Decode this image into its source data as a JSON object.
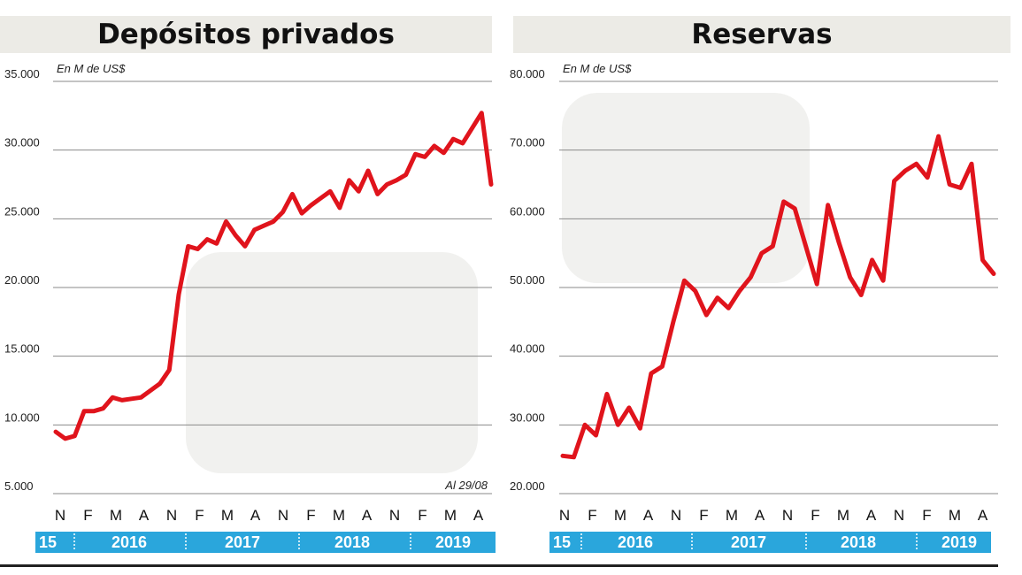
{
  "chart_data": [
    {
      "type": "line",
      "title": "Depósitos privados",
      "subtitle": "En M de US$",
      "annotation": "Al 29/08",
      "ylim": [
        5000,
        35000
      ],
      "yticks": [
        5000,
        10000,
        15000,
        20000,
        25000,
        30000,
        35000
      ],
      "ytick_labels": [
        "5.000",
        "10.000",
        "15.000",
        "20.000",
        "25.000",
        "30.000",
        "35.000"
      ],
      "month_labels": [
        "N",
        "F",
        "M",
        "A",
        "N",
        "F",
        "M",
        "A",
        "N",
        "F",
        "M",
        "A",
        "N",
        "F",
        "M",
        "A"
      ],
      "year_labels": [
        "15",
        "2016",
        "2017",
        "2018",
        "2019"
      ],
      "grid": true,
      "line_color": "#e0141c",
      "series": [
        {
          "values": [
            9500,
            9000,
            9200,
            11000,
            11000,
            11200,
            12000,
            11800,
            11900,
            12000,
            12500,
            13000,
            14000,
            19500,
            23000,
            22800,
            23500,
            23200,
            24800,
            23800,
            23000,
            24200,
            24500,
            24800,
            25500,
            26800,
            25400,
            26000,
            26500,
            27000,
            25800,
            27800,
            27000,
            28500,
            26800,
            27500,
            27800,
            28200,
            29700,
            29500,
            30300,
            29800,
            30800,
            30500,
            31600,
            32700,
            27500
          ]
        }
      ]
    },
    {
      "type": "line",
      "title": "Reservas",
      "subtitle": "En M de US$",
      "ylim": [
        20000,
        80000
      ],
      "yticks": [
        20000,
        30000,
        40000,
        50000,
        60000,
        70000,
        80000
      ],
      "ytick_labels": [
        "20.000",
        "30.000",
        "40.000",
        "50.000",
        "60.000",
        "70.000",
        "80.000"
      ],
      "month_labels": [
        "N",
        "F",
        "M",
        "A",
        "N",
        "F",
        "M",
        "A",
        "N",
        "F",
        "M",
        "A",
        "N",
        "F",
        "M",
        "A"
      ],
      "year_labels": [
        "15",
        "2016",
        "2017",
        "2018",
        "2019"
      ],
      "grid": true,
      "line_color": "#e0141c",
      "series": [
        {
          "values": [
            25500,
            25300,
            30000,
            28500,
            34500,
            30000,
            32500,
            29500,
            37500,
            38500,
            45000,
            51000,
            49500,
            46000,
            48500,
            47000,
            49500,
            51500,
            55000,
            56000,
            62500,
            61500,
            56000,
            50500,
            62000,
            56500,
            51500,
            48900,
            54000,
            51000,
            65500,
            67000,
            68000,
            66000,
            72000,
            65000,
            64500,
            68000,
            54000,
            52000
          ]
        }
      ]
    }
  ]
}
